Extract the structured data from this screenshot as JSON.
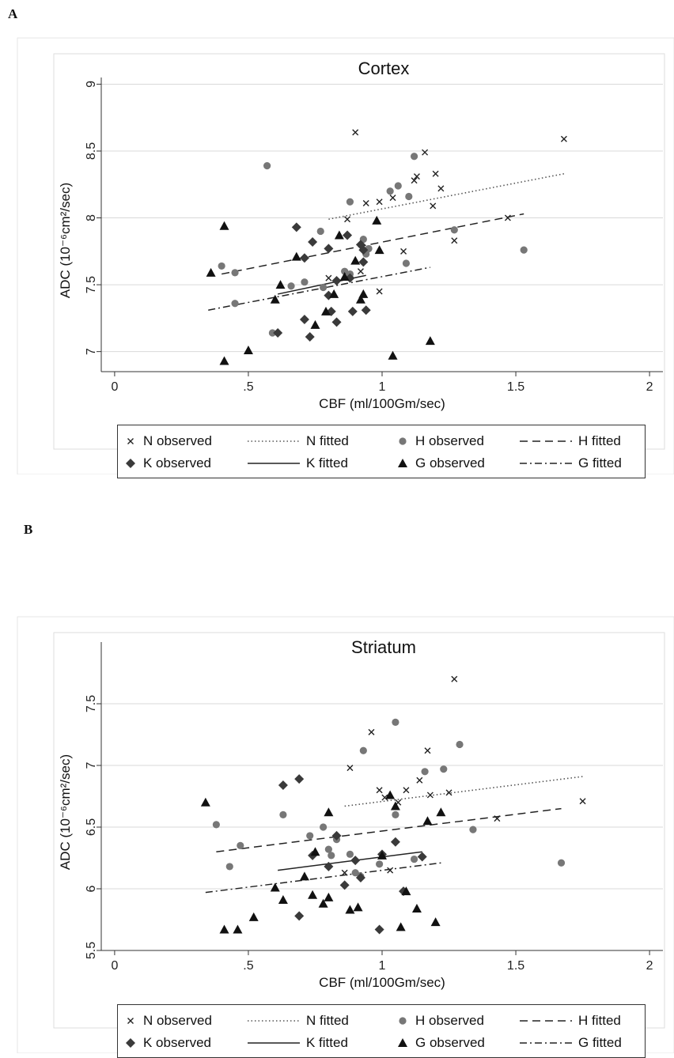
{
  "panels": [
    {
      "letter": "A",
      "chart_data": {
        "type": "scatter",
        "title": "Cortex",
        "xlabel": "CBF (ml/100Gm/sec)",
        "ylabel": "ADC (10⁻⁶cm²/sec)",
        "xlim": [
          -0.05,
          2.05
        ],
        "ylim": [
          6.85,
          9.05
        ],
        "xticks": [
          0,
          0.5,
          1,
          1.5,
          2
        ],
        "xtick_labels": [
          "0",
          ".5",
          "1",
          "1.5",
          "2"
        ],
        "yticks": [
          7,
          7.5,
          8,
          8.5,
          9
        ],
        "ytick_labels": [
          "7",
          "7.5",
          "8",
          "8.5",
          "9"
        ],
        "grid": true,
        "legend_position": "bottom",
        "series": [
          {
            "name": "N observed",
            "marker": "x",
            "color": "#222222",
            "points": [
              [
                0.9,
                8.64
              ],
              [
                1.16,
                8.49
              ],
              [
                1.68,
                8.59
              ],
              [
                1.2,
                8.33
              ],
              [
                1.13,
                8.31
              ],
              [
                1.12,
                8.28
              ],
              [
                1.22,
                8.22
              ],
              [
                0.94,
                8.11
              ],
              [
                0.99,
                8.12
              ],
              [
                1.04,
                8.15
              ],
              [
                1.19,
                8.09
              ],
              [
                0.87,
                7.99
              ],
              [
                1.47,
                8.0
              ],
              [
                1.27,
                7.83
              ],
              [
                1.08,
                7.75
              ],
              [
                0.92,
                7.6
              ],
              [
                0.8,
                7.55
              ],
              [
                0.99,
                7.45
              ]
            ]
          },
          {
            "name": "H observed",
            "marker": "circle",
            "color": "#777777",
            "points": [
              [
                0.57,
                8.39
              ],
              [
                1.12,
                8.46
              ],
              [
                1.06,
                8.24
              ],
              [
                1.03,
                8.2
              ],
              [
                1.1,
                8.16
              ],
              [
                0.88,
                8.12
              ],
              [
                0.4,
                7.64
              ],
              [
                0.45,
                7.59
              ],
              [
                0.45,
                7.36
              ],
              [
                0.66,
                7.49
              ],
              [
                0.77,
                7.9
              ],
              [
                0.86,
                7.6
              ],
              [
                0.88,
                7.58
              ],
              [
                0.93,
                7.84
              ],
              [
                0.94,
                7.73
              ],
              [
                0.95,
                7.77
              ],
              [
                1.09,
                7.66
              ],
              [
                1.27,
                7.91
              ],
              [
                1.53,
                7.76
              ],
              [
                0.71,
                7.52
              ],
              [
                0.78,
                7.48
              ],
              [
                0.59,
                7.14
              ]
            ]
          },
          {
            "name": "K observed",
            "marker": "diamond",
            "color": "#3a3a3a",
            "points": [
              [
                0.68,
                7.93
              ],
              [
                0.74,
                7.82
              ],
              [
                0.8,
                7.77
              ],
              [
                0.87,
                7.87
              ],
              [
                0.92,
                7.8
              ],
              [
                0.93,
                7.76
              ],
              [
                0.71,
                7.7
              ],
              [
                0.93,
                7.67
              ],
              [
                0.88,
                7.55
              ],
              [
                0.8,
                7.42
              ],
              [
                0.83,
                7.53
              ],
              [
                0.81,
                7.3
              ],
              [
                0.73,
                7.11
              ],
              [
                0.71,
                7.24
              ],
              [
                0.83,
                7.22
              ],
              [
                0.89,
                7.3
              ],
              [
                0.94,
                7.31
              ],
              [
                0.61,
                7.14
              ]
            ]
          },
          {
            "name": "G observed",
            "marker": "triangle",
            "color": "#111111",
            "points": [
              [
                0.41,
                7.94
              ],
              [
                0.36,
                7.59
              ],
              [
                0.41,
                6.93
              ],
              [
                0.5,
                7.01
              ],
              [
                0.6,
                7.39
              ],
              [
                0.62,
                7.5
              ],
              [
                0.68,
                7.71
              ],
              [
                0.75,
                7.2
              ],
              [
                0.79,
                7.3
              ],
              [
                0.82,
                7.43
              ],
              [
                0.84,
                7.87
              ],
              [
                0.86,
                7.56
              ],
              [
                0.9,
                7.68
              ],
              [
                0.92,
                7.39
              ],
              [
                0.93,
                7.43
              ],
              [
                0.98,
                7.98
              ],
              [
                0.99,
                7.76
              ],
              [
                1.04,
                6.97
              ],
              [
                1.18,
                7.08
              ]
            ]
          },
          {
            "name": "N fitted",
            "line": "dotted",
            "color": "#555555",
            "line_points": [
              [
                0.8,
                7.99
              ],
              [
                1.68,
                8.33
              ]
            ]
          },
          {
            "name": "H fitted",
            "line": "dashed",
            "color": "#222222",
            "line_points": [
              [
                0.4,
                7.58
              ],
              [
                1.53,
                8.03
              ]
            ]
          },
          {
            "name": "K fitted",
            "line": "solid",
            "color": "#222222",
            "line_points": [
              [
                0.61,
                7.43
              ],
              [
                0.94,
                7.57
              ]
            ]
          },
          {
            "name": "G fitted",
            "line": "dashdot",
            "color": "#222222",
            "line_points": [
              [
                0.35,
                7.31
              ],
              [
                1.18,
                7.63
              ]
            ]
          }
        ]
      }
    },
    {
      "letter": "B",
      "chart_data": {
        "type": "scatter",
        "title": "Striatum",
        "xlabel": "CBF (ml/100Gm/sec)",
        "ylabel": "ADC (10⁻⁶cm²/sec)",
        "xlim": [
          -0.05,
          2.05
        ],
        "ylim": [
          5.5,
          8.0
        ],
        "xticks": [
          0,
          0.5,
          1,
          1.5,
          2
        ],
        "xtick_labels": [
          "0",
          ".5",
          "1",
          "1.5",
          "2"
        ],
        "yticks": [
          5.5,
          6,
          6.5,
          7,
          7.5
        ],
        "ytick_labels": [
          "5.5",
          "6",
          "6.5",
          "7",
          "7.5"
        ],
        "grid": true,
        "legend_position": "bottom",
        "series": [
          {
            "name": "N observed",
            "marker": "x",
            "color": "#222222",
            "points": [
              [
                1.27,
                7.7
              ],
              [
                0.96,
                7.27
              ],
              [
                1.17,
                7.12
              ],
              [
                0.88,
                6.98
              ],
              [
                1.14,
                6.88
              ],
              [
                0.99,
                6.8
              ],
              [
                1.09,
                6.8
              ],
              [
                1.01,
                6.74
              ],
              [
                1.06,
                6.7
              ],
              [
                1.18,
                6.76
              ],
              [
                1.25,
                6.78
              ],
              [
                1.75,
                6.71
              ],
              [
                1.43,
                6.57
              ],
              [
                1.03,
                6.15
              ],
              [
                0.86,
                6.13
              ]
            ]
          },
          {
            "name": "H observed",
            "marker": "circle",
            "color": "#777777",
            "points": [
              [
                1.05,
                7.35
              ],
              [
                1.29,
                7.17
              ],
              [
                0.93,
                7.12
              ],
              [
                1.16,
                6.95
              ],
              [
                1.23,
                6.97
              ],
              [
                1.05,
                6.6
              ],
              [
                0.63,
                6.6
              ],
              [
                0.38,
                6.52
              ],
              [
                0.47,
                6.35
              ],
              [
                0.43,
                6.18
              ],
              [
                0.73,
                6.43
              ],
              [
                0.78,
                6.5
              ],
              [
                0.8,
                6.32
              ],
              [
                0.81,
                6.27
              ],
              [
                0.83,
                6.4
              ],
              [
                0.88,
                6.28
              ],
              [
                0.9,
                6.13
              ],
              [
                0.92,
                6.1
              ],
              [
                0.99,
                6.2
              ],
              [
                1.12,
                6.24
              ],
              [
                1.34,
                6.48
              ],
              [
                1.67,
                6.21
              ]
            ]
          },
          {
            "name": "K observed",
            "marker": "diamond",
            "color": "#3a3a3a",
            "points": [
              [
                0.69,
                6.89
              ],
              [
                0.63,
                6.84
              ],
              [
                0.83,
                6.43
              ],
              [
                0.74,
                6.27
              ],
              [
                0.86,
                6.03
              ],
              [
                0.8,
                6.18
              ],
              [
                0.92,
                6.09
              ],
              [
                0.9,
                6.23
              ],
              [
                1.0,
                6.28
              ],
              [
                1.05,
                6.38
              ],
              [
                1.15,
                6.26
              ],
              [
                1.08,
                5.98
              ],
              [
                0.69,
                5.78
              ],
              [
                0.99,
                5.67
              ]
            ]
          },
          {
            "name": "G observed",
            "marker": "triangle",
            "color": "#111111",
            "points": [
              [
                0.34,
                6.7
              ],
              [
                0.41,
                5.67
              ],
              [
                0.46,
                5.67
              ],
              [
                0.52,
                5.77
              ],
              [
                0.6,
                6.01
              ],
              [
                0.63,
                5.91
              ],
              [
                0.71,
                6.1
              ],
              [
                0.74,
                5.95
              ],
              [
                0.75,
                6.3
              ],
              [
                0.78,
                5.88
              ],
              [
                0.8,
                5.93
              ],
              [
                0.8,
                6.62
              ],
              [
                0.88,
                5.83
              ],
              [
                0.91,
                5.85
              ],
              [
                1.0,
                6.27
              ],
              [
                1.03,
                6.76
              ],
              [
                1.05,
                6.67
              ],
              [
                1.07,
                5.69
              ],
              [
                1.09,
                5.98
              ],
              [
                1.13,
                5.84
              ],
              [
                1.17,
                6.55
              ],
              [
                1.2,
                5.73
              ],
              [
                1.22,
                6.62
              ]
            ]
          },
          {
            "name": "N fitted",
            "line": "dotted",
            "color": "#555555",
            "line_points": [
              [
                0.86,
                6.67
              ],
              [
                1.75,
                6.91
              ]
            ]
          },
          {
            "name": "H fitted",
            "line": "dashed",
            "color": "#222222",
            "line_points": [
              [
                0.38,
                6.3
              ],
              [
                1.67,
                6.65
              ]
            ]
          },
          {
            "name": "K fitted",
            "line": "solid",
            "color": "#222222",
            "line_points": [
              [
                0.61,
                6.15
              ],
              [
                1.15,
                6.3
              ]
            ]
          },
          {
            "name": "G fitted",
            "line": "dashdot",
            "color": "#222222",
            "line_points": [
              [
                0.34,
                5.97
              ],
              [
                1.22,
                6.21
              ]
            ]
          }
        ]
      }
    }
  ],
  "legend": [
    {
      "label": "N observed",
      "kind": "marker",
      "style": "x"
    },
    {
      "label": "N fitted",
      "kind": "line",
      "style": "dotted"
    },
    {
      "label": "H observed",
      "kind": "marker",
      "style": "circle"
    },
    {
      "label": "H fitted",
      "kind": "line",
      "style": "dashed"
    },
    {
      "label": "K observed",
      "kind": "marker",
      "style": "diamond"
    },
    {
      "label": "K fitted",
      "kind": "line",
      "style": "solid"
    },
    {
      "label": "G observed",
      "kind": "marker",
      "style": "triangle"
    },
    {
      "label": "G fitted",
      "kind": "line",
      "style": "dashdot"
    }
  ]
}
